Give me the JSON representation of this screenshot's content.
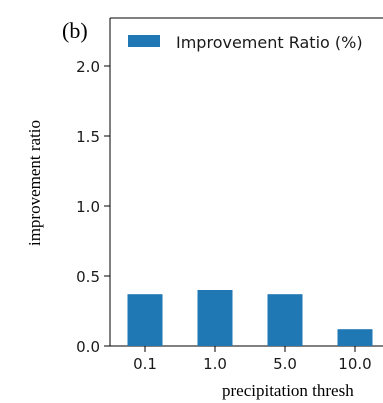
{
  "panel_label": "(b)",
  "chart_data": {
    "type": "bar",
    "categories": [
      "0.1",
      "1.0",
      "5.0",
      "10.0"
    ],
    "series": [
      {
        "name": "Improvement Ratio (%)",
        "values": [
          0.37,
          0.4,
          0.37,
          0.12
        ]
      }
    ],
    "xlabel": "precipitation thresh",
    "ylabel": "improvement ratio",
    "ylim": [
      0,
      2.0
    ],
    "yticks": [
      "0.0",
      "0.5",
      "1.0",
      "1.5",
      "2.0"
    ],
    "legend_position": "top",
    "grid": false,
    "bar_color": "#1f77b4"
  }
}
